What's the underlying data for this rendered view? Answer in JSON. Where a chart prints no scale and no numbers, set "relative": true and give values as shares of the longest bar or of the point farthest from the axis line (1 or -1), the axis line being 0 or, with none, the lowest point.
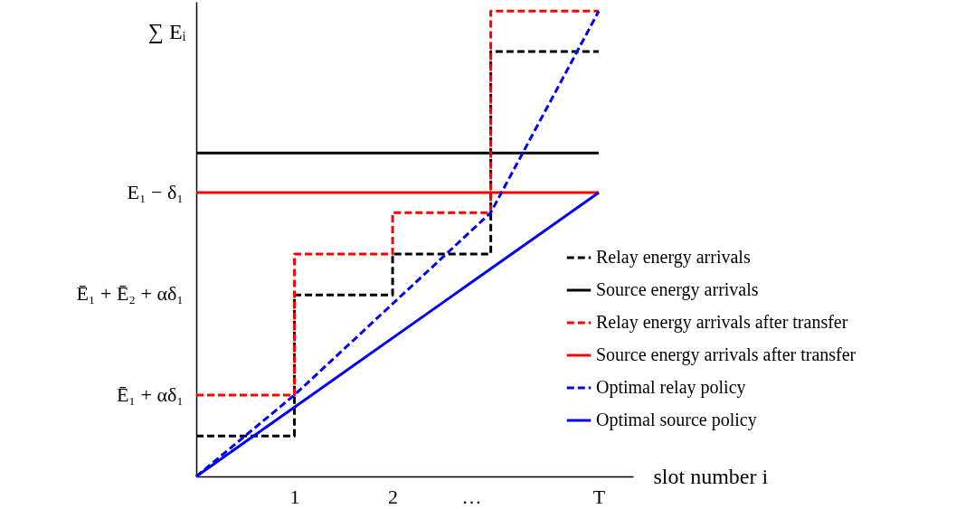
{
  "chart_data": {
    "type": "line",
    "relative": true,
    "xlabel": "slot number i",
    "ylabel": "∑ Eᵢ",
    "xlim": [
      0,
      4.45
    ],
    "xticks": [
      1,
      2,
      {
        "value": 2.8,
        "label": "…"
      },
      {
        "value": 4.1,
        "label": "T"
      }
    ],
    "grid": false,
    "legend": "bottom right",
    "series": [
      {
        "name": "Relay energy arrivals",
        "type": "step",
        "color": "#000000",
        "line_style": "dashed",
        "x": [
          0,
          1,
          2,
          3,
          4.1
        ],
        "values": [
          0.087,
          0.39,
          0.478,
          0.913,
          0.913
        ]
      },
      {
        "name": "Source energy arrivals",
        "type": "line",
        "color": "#000000",
        "line_style": "solid",
        "x": [
          0,
          4.1
        ],
        "values": [
          0.695,
          0.695
        ]
      },
      {
        "name": "Relay energy arrivals after transfer",
        "type": "step",
        "color": "#ff0000",
        "line_style": "dashed",
        "x": [
          0,
          1,
          2,
          3,
          4.1
        ],
        "values": [
          0.175,
          0.478,
          0.567,
          1,
          1
        ]
      },
      {
        "name": "Source energy arrivals after transfer",
        "type": "line",
        "color": "#ff0000",
        "line_style": "solid",
        "x": [
          0,
          4.1
        ],
        "values": [
          0.61,
          0.61
        ]
      },
      {
        "name": "Optimal relay policy",
        "type": "line",
        "color": "#0000ff",
        "line_style": "dashed",
        "x": [
          0,
          1,
          3,
          4.1
        ],
        "values": [
          0,
          0.175,
          0.567,
          1
        ]
      },
      {
        "name": "Optimal source policy",
        "type": "line",
        "color": "#0000ff",
        "line_style": "solid",
        "x": [
          0,
          4.1
        ],
        "values": [
          0,
          0.61
        ]
      }
    ],
    "annotations": [
      {
        "text": "E₁ − δ₁",
        "x": 0,
        "y": 0.61
      },
      "Ē₁ + Ē₂ + αδ₁",
      {
        "text": "Ē₁ + αδ₁",
        "x": 0,
        "y": 0.175
      }
    ]
  }
}
